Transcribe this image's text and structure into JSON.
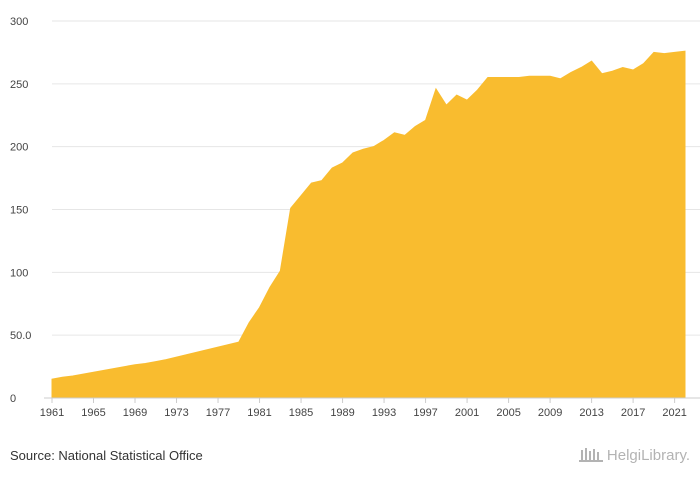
{
  "source_text": "Source: National Statistical Office",
  "brand": {
    "name": "HelgiLibrary.",
    "icon": "library-building-icon"
  },
  "colors": {
    "area": "#f9bc2f",
    "grid": "#e6e6e6",
    "axis": "#cccccc",
    "text": "#444444"
  },
  "chart_data": {
    "type": "area",
    "title": "",
    "xlabel": "",
    "ylabel": "",
    "ylim": [
      0,
      300
    ],
    "xlim": [
      1961,
      2022
    ],
    "grid": true,
    "y_ticks": [
      0,
      50,
      100,
      150,
      200,
      250,
      300
    ],
    "y_tick_labels": [
      "0",
      "50.0",
      "100",
      "150",
      "200",
      "250",
      "300"
    ],
    "x_ticks": [
      1961,
      1965,
      1969,
      1973,
      1977,
      1981,
      1985,
      1989,
      1993,
      1997,
      2001,
      2005,
      2009,
      2013,
      2017,
      2021
    ],
    "x_tick_labels": [
      "1961",
      "1965",
      "1969",
      "1973",
      "1977",
      "1981",
      "1985",
      "1989",
      "1993",
      "1997",
      "2001",
      "2005",
      "2009",
      "2013",
      "2017",
      "2021"
    ],
    "series": [
      {
        "x": [
          1961,
          1962,
          1963,
          1964,
          1965,
          1966,
          1967,
          1968,
          1969,
          1970,
          1971,
          1972,
          1973,
          1974,
          1975,
          1976,
          1977,
          1978,
          1979,
          1980,
          1981,
          1982,
          1983,
          1984,
          1985,
          1986,
          1987,
          1988,
          1989,
          1990,
          1991,
          1992,
          1993,
          1994,
          1995,
          1996,
          1997,
          1998,
          1999,
          2000,
          2001,
          2002,
          2003,
          2004,
          2005,
          2006,
          2007,
          2008,
          2009,
          2010,
          2011,
          2012,
          2013,
          2014,
          2015,
          2016,
          2017,
          2018,
          2019,
          2020,
          2021,
          2022
        ],
        "values": [
          15,
          16.5,
          17.5,
          19,
          20.5,
          22,
          23.5,
          25,
          26.5,
          27.5,
          29,
          30.5,
          32.5,
          34.5,
          36.5,
          38.5,
          40.5,
          42.5,
          44.5,
          60,
          72,
          88,
          101,
          151,
          161,
          171,
          173,
          183,
          187,
          195,
          198,
          200,
          205,
          211,
          209,
          216,
          221,
          246,
          233,
          241,
          237,
          245,
          255,
          255,
          255,
          255,
          256,
          256,
          256,
          254,
          259,
          263,
          268,
          258,
          260,
          263,
          261,
          266,
          275,
          274,
          275,
          276
        ]
      }
    ]
  }
}
